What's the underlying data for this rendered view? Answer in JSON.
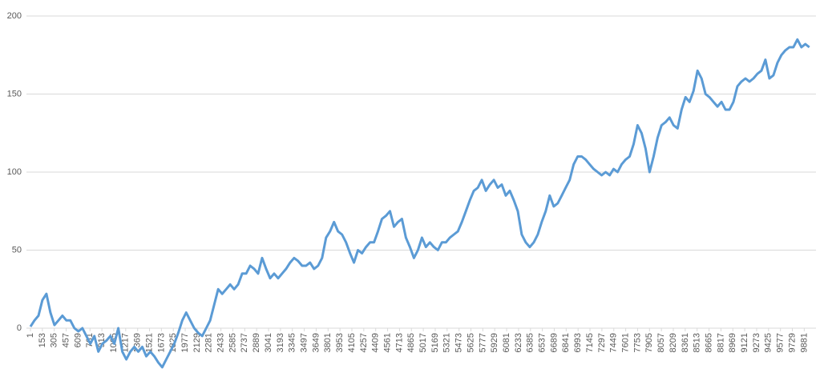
{
  "chart_data": {
    "type": "line",
    "x": [
      1,
      52,
      103,
      154,
      205,
      256,
      307,
      358,
      409,
      460,
      511,
      562,
      613,
      664,
      715,
      766,
      817,
      868,
      919,
      970,
      1021,
      1072,
      1123,
      1174,
      1225,
      1276,
      1327,
      1378,
      1429,
      1480,
      1531,
      1582,
      1633,
      1684,
      1735,
      1786,
      1837,
      1888,
      1939,
      1990,
      2041,
      2092,
      2143,
      2194,
      2245,
      2296,
      2347,
      2398,
      2449,
      2500,
      2551,
      2602,
      2653,
      2704,
      2755,
      2806,
      2857,
      2908,
      2959,
      3010,
      3061,
      3112,
      3163,
      3214,
      3265,
      3316,
      3367,
      3418,
      3469,
      3520,
      3571,
      3622,
      3673,
      3724,
      3775,
      3826,
      3877,
      3928,
      3979,
      4030,
      4081,
      4132,
      4183,
      4234,
      4285,
      4336,
      4387,
      4438,
      4489,
      4540,
      4591,
      4642,
      4693,
      4744,
      4795,
      4846,
      4897,
      4948,
      4999,
      5050,
      5101,
      5152,
      5203,
      5254,
      5305,
      5356,
      5407,
      5458,
      5509,
      5560,
      5611,
      5662,
      5713,
      5764,
      5815,
      5866,
      5917,
      5968,
      6019,
      6070,
      6121,
      6172,
      6223,
      6274,
      6325,
      6376,
      6427,
      6478,
      6529,
      6580,
      6631,
      6682,
      6733,
      6784,
      6835,
      6886,
      6937,
      6988,
      7039,
      7090,
      7141,
      7192,
      7243,
      7294,
      7345,
      7396,
      7447,
      7498,
      7549,
      7600,
      7651,
      7702,
      7753,
      7804,
      7855,
      7906,
      7957,
      8008,
      8059,
      8110,
      8161,
      8212,
      8263,
      8314,
      8365,
      8416,
      8467,
      8518,
      8569,
      8620,
      8671,
      8722,
      8773,
      8824,
      8875,
      8926,
      8977,
      9028,
      9079,
      9130,
      9181,
      9232,
      9283,
      9334,
      9385,
      9436,
      9487,
      9538,
      9589,
      9640,
      9691,
      9742,
      9793,
      9844,
      9895,
      9946
    ],
    "series": [
      {
        "color": "#5b9bd5",
        "values": [
          1,
          5,
          8,
          18,
          22,
          10,
          2,
          5,
          8,
          5,
          5,
          0,
          -2,
          0,
          -5,
          -10,
          -5,
          -15,
          -10,
          -8,
          -5,
          -10,
          0,
          -15,
          -20,
          -15,
          -12,
          -15,
          -12,
          -18,
          -15,
          -18,
          -22,
          -25,
          -20,
          -15,
          -10,
          -3,
          5,
          10,
          5,
          0,
          -3,
          -5,
          0,
          5,
          15,
          25,
          22,
          25,
          28,
          25,
          28,
          35,
          35,
          40,
          38,
          35,
          45,
          38,
          32,
          35,
          32,
          35,
          38,
          42,
          45,
          43,
          40,
          40,
          42,
          38,
          40,
          45,
          58,
          62,
          68,
          62,
          60,
          55,
          48,
          42,
          50,
          48,
          52,
          55,
          55,
          62,
          70,
          72,
          75,
          65,
          68,
          70,
          58,
          52,
          45,
          50,
          58,
          52,
          55,
          52,
          50,
          55,
          55,
          58,
          60,
          62,
          68,
          75,
          82,
          88,
          90,
          95,
          88,
          92,
          95,
          90,
          92,
          85,
          88,
          82,
          75,
          60,
          55,
          52,
          55,
          60,
          68,
          75,
          85,
          78,
          80,
          85,
          90,
          95,
          105,
          110,
          110,
          108,
          105,
          102,
          100,
          98,
          100,
          98,
          102,
          100,
          105,
          108,
          110,
          118,
          130,
          125,
          115,
          100,
          110,
          122,
          130,
          132,
          135,
          130,
          128,
          140,
          148,
          145,
          152,
          165,
          160,
          150,
          148,
          145,
          142,
          145,
          140,
          140,
          145,
          155,
          158,
          160,
          158,
          160,
          163,
          165,
          172,
          160,
          162,
          170,
          175,
          178,
          180,
          180,
          185,
          180,
          182,
          180
        ]
      }
    ],
    "xlim": [
      1,
      10000
    ],
    "xticks": [
      1,
      153,
      305,
      457,
      609,
      761,
      913,
      1065,
      1217,
      1369,
      1521,
      1673,
      1825,
      1977,
      2129,
      2281,
      2433,
      2585,
      2737,
      2889,
      3041,
      3193,
      3345,
      3497,
      3649,
      3801,
      3953,
      4105,
      4257,
      4409,
      4561,
      4713,
      4865,
      5017,
      5169,
      5321,
      5473,
      5625,
      5777,
      5929,
      6081,
      6233,
      6385,
      6537,
      6689,
      6841,
      6993,
      7145,
      7297,
      7449,
      7601,
      7753,
      7905,
      8057,
      8209,
      8361,
      8513,
      8665,
      8817,
      8969,
      9121,
      9273,
      9425,
      9577,
      9729,
      9881
    ],
    "ylim": [
      0,
      200
    ],
    "yticks": [
      0,
      50,
      100,
      150,
      200
    ],
    "grid": true
  }
}
